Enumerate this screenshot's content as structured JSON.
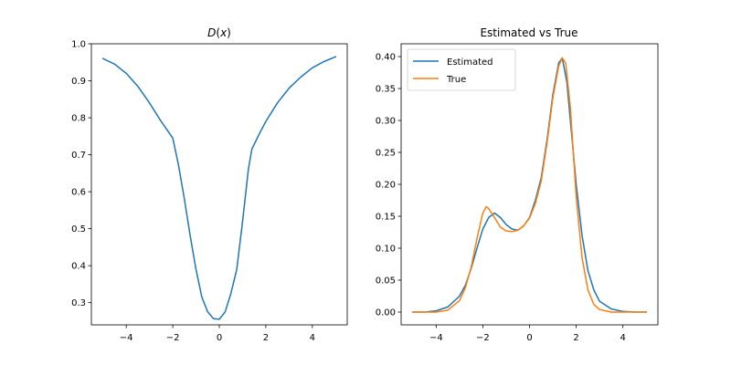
{
  "chart_data": [
    {
      "type": "line",
      "title": "",
      "title_math": {
        "main": "D",
        "arg": "x"
      },
      "xlabel": "",
      "ylabel": "",
      "xlim": [
        -5.5,
        5.5
      ],
      "ylim": [
        0.24,
        1.0
      ],
      "xticks": [
        -4,
        -2,
        0,
        2,
        4
      ],
      "xtick_labels": [
        "−4",
        "−2",
        "0",
        "2",
        "4"
      ],
      "yticks": [
        0.3,
        0.4,
        0.5,
        0.6,
        0.7,
        0.8,
        0.9,
        1.0
      ],
      "ytick_labels": [
        "0.3",
        "0.4",
        "0.5",
        "0.6",
        "0.7",
        "0.8",
        "0.9",
        "1.0"
      ],
      "grid": false,
      "series": [
        {
          "color": "#1f77b4",
          "x": [
            -5.0,
            -4.5,
            -4.0,
            -3.5,
            -3.0,
            -2.5,
            -2.0,
            -1.75,
            -1.5,
            -1.25,
            -1.0,
            -0.75,
            -0.5,
            -0.25,
            0.0,
            0.25,
            0.5,
            0.75,
            1.0,
            1.25,
            1.4,
            1.75,
            2.0,
            2.5,
            3.0,
            3.5,
            4.0,
            4.5,
            5.0
          ],
          "y": [
            0.96,
            0.945,
            0.92,
            0.885,
            0.84,
            0.79,
            0.745,
            0.67,
            0.58,
            0.48,
            0.39,
            0.315,
            0.275,
            0.257,
            0.255,
            0.275,
            0.325,
            0.39,
            0.52,
            0.66,
            0.715,
            0.76,
            0.79,
            0.84,
            0.88,
            0.91,
            0.935,
            0.952,
            0.965
          ]
        }
      ]
    },
    {
      "type": "line",
      "title": "Estimated vs True",
      "xlabel": "",
      "ylabel": "",
      "xlim": [
        -5.5,
        5.5
      ],
      "ylim": [
        -0.02,
        0.42
      ],
      "xticks": [
        -4,
        -2,
        0,
        2,
        4
      ],
      "xtick_labels": [
        "−4",
        "−2",
        "0",
        "2",
        "4"
      ],
      "yticks": [
        0.0,
        0.05,
        0.1,
        0.15,
        0.2,
        0.25,
        0.3,
        0.35,
        0.4
      ],
      "ytick_labels": [
        "0.00",
        "0.05",
        "0.10",
        "0.15",
        "0.20",
        "0.25",
        "0.30",
        "0.35",
        "0.40"
      ],
      "grid": false,
      "legend_position": "top-left",
      "series": [
        {
          "name": "Estimated",
          "color": "#1f77b4",
          "x": [
            -5.0,
            -4.5,
            -4.0,
            -3.5,
            -3.0,
            -2.75,
            -2.5,
            -2.25,
            -2.0,
            -1.75,
            -1.5,
            -1.25,
            -1.0,
            -0.75,
            -0.5,
            -0.25,
            0.0,
            0.25,
            0.5,
            0.75,
            1.0,
            1.25,
            1.4,
            1.6,
            1.75,
            2.0,
            2.25,
            2.5,
            2.75,
            3.0,
            3.5,
            4.0,
            4.5,
            5.0
          ],
          "y": [
            0.0,
            0.0,
            0.002,
            0.008,
            0.025,
            0.042,
            0.068,
            0.1,
            0.13,
            0.148,
            0.155,
            0.148,
            0.137,
            0.13,
            0.128,
            0.135,
            0.148,
            0.175,
            0.21,
            0.27,
            0.34,
            0.39,
            0.398,
            0.36,
            0.3,
            0.2,
            0.12,
            0.065,
            0.035,
            0.017,
            0.005,
            0.001,
            0.0,
            0.0
          ]
        },
        {
          "name": "True",
          "color": "#ff7f0e",
          "x": [
            -5.0,
            -4.5,
            -4.0,
            -3.5,
            -3.0,
            -2.75,
            -2.5,
            -2.25,
            -2.0,
            -1.85,
            -1.75,
            -1.5,
            -1.25,
            -1.0,
            -0.75,
            -0.5,
            -0.25,
            0.0,
            0.25,
            0.5,
            0.75,
            1.0,
            1.25,
            1.4,
            1.55,
            1.75,
            2.0,
            2.25,
            2.5,
            2.75,
            3.0,
            3.5,
            4.0,
            4.5,
            5.0
          ],
          "y": [
            0.0,
            0.0,
            0.0,
            0.003,
            0.018,
            0.038,
            0.07,
            0.115,
            0.155,
            0.165,
            0.162,
            0.148,
            0.133,
            0.127,
            0.126,
            0.128,
            0.135,
            0.147,
            0.17,
            0.205,
            0.265,
            0.335,
            0.385,
            0.398,
            0.39,
            0.32,
            0.18,
            0.085,
            0.035,
            0.012,
            0.004,
            0.0,
            0.0,
            0.0,
            0.0
          ]
        }
      ]
    }
  ]
}
